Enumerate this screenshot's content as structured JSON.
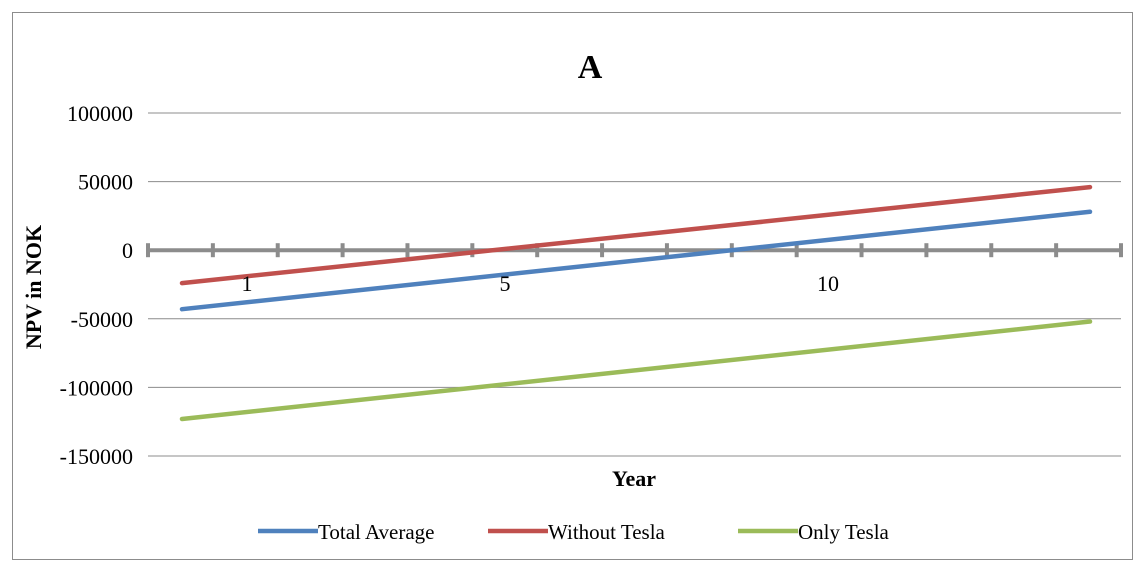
{
  "chart_data": {
    "type": "line",
    "title": "A",
    "xlabel": "Year",
    "ylabel": "NPV in NOK",
    "ylim": [
      -150000,
      100000
    ],
    "y_ticks": [
      100000,
      50000,
      0,
      -50000,
      -100000,
      -150000
    ],
    "y_tick_labels": [
      "100000",
      "50000",
      "0",
      "-50000",
      "-100000",
      "-150000"
    ],
    "x": [
      1,
      2,
      3,
      4,
      5,
      6,
      7,
      8,
      9,
      10,
      11,
      12,
      13,
      14,
      15
    ],
    "x_tick_labels": [
      {
        "x": 1,
        "label": "1"
      },
      {
        "x": 5,
        "label": "5"
      },
      {
        "x": 10,
        "label": "10"
      }
    ],
    "grid": true,
    "legend_position": "bottom",
    "series": [
      {
        "name": "Total Average",
        "color": "#4f81bd",
        "start": -43000,
        "end": 28000
      },
      {
        "name": "Without Tesla",
        "color": "#c0504d",
        "start": -24000,
        "end": 46000
      },
      {
        "name": "Only Tesla",
        "color": "#9bbb59",
        "start": -123000,
        "end": -52000
      }
    ]
  }
}
